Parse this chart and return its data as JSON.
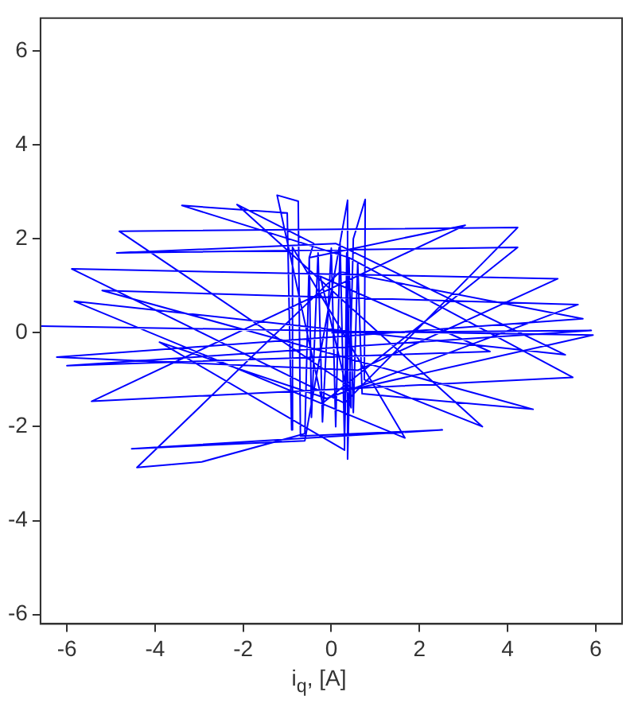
{
  "chart_data": {
    "type": "line",
    "xlabel": "i$_{q}$, [A]",
    "xlim": [
      -6.6,
      6.6
    ],
    "ylim": [
      -6.2,
      6.7
    ],
    "xticks": [
      -6,
      -4,
      -2,
      0,
      2,
      4,
      6
    ],
    "yticks": [
      -6,
      -4,
      -2,
      0,
      2,
      4,
      6
    ],
    "grid": false,
    "legend": false,
    "marker": "none",
    "line_style": "solid",
    "series": [
      {
        "color": "#0000ff",
        "x": [
          -6.58,
          5.94,
          0.5,
          -4.81,
          4.23,
          0.3,
          -5.89,
          5.14,
          0.6,
          -6.23,
          5.71,
          0.2,
          -4.41,
          -2.94,
          -0.6,
          -0.5,
          3.04,
          -5.44,
          5.48,
          0.4,
          -3.39,
          -1.0,
          -0.9,
          -0.88,
          1.67,
          -5.83,
          5.31,
          0.1,
          -4.87,
          4.23,
          -0.2,
          -1.23,
          -0.75,
          -0.7,
          2.52,
          -4.53,
          -0.6,
          0.37,
          0.37,
          0.5,
          0.77,
          0.75,
          3.43,
          -2.14,
          -0.4,
          -0.5,
          -0.45,
          -0.3,
          -0.2,
          0.0,
          0.1,
          0.2,
          0.3,
          0.4,
          0.5,
          0.6,
          0.7,
          4.58,
          -5.2,
          5.6,
          -0.1,
          -3.9,
          0.3,
          0.35,
          0.45,
          -0.25,
          3.6,
          -6.0,
          5.9,
          0.0
        ],
        "values": [
          0.14,
          -0.05,
          -1.2,
          2.16,
          2.24,
          -1.5,
          1.36,
          1.15,
          -0.8,
          -0.52,
          0.3,
          1.3,
          -2.87,
          -2.75,
          -2.15,
          1.6,
          2.29,
          -1.46,
          -0.95,
          1.6,
          2.71,
          2.55,
          -2.07,
          1.82,
          -2.24,
          0.67,
          -0.47,
          1.9,
          1.7,
          1.82,
          -1.5,
          2.93,
          2.8,
          -2.2,
          -2.07,
          -2.47,
          -2.3,
          2.82,
          -2.69,
          2.0,
          2.84,
          -1.0,
          -2.0,
          2.73,
          1.9,
          1.6,
          -1.8,
          1.7,
          -1.9,
          1.8,
          -2.0,
          1.9,
          -2.3,
          1.6,
          -1.7,
          1.5,
          -1.3,
          -1.63,
          0.9,
          0.6,
          -1.4,
          -0.2,
          -2.5,
          1.7,
          -1.6,
          1.2,
          -0.4,
          -0.7,
          0.05,
          0.0
        ]
      }
    ]
  }
}
